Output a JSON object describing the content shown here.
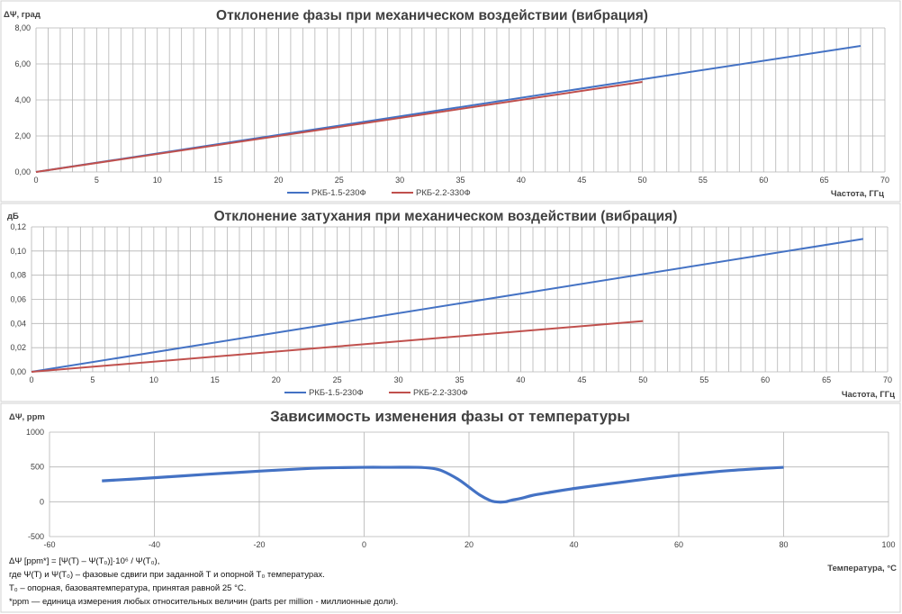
{
  "colors": {
    "blue": "#4472c4",
    "red": "#c0504d",
    "grid": "#b4b4b4",
    "border": "#d0d0d0"
  },
  "chart_data": [
    {
      "type": "line",
      "title": "Отклонение фазы при механическом воздействии (вибрация)",
      "ylabel": "ΔΨ, град",
      "xlabel": "Частота,  ГГц",
      "xlim": [
        0,
        70
      ],
      "ylim": [
        0,
        8
      ],
      "x_ticks": [
        "0",
        "5",
        "10",
        "15",
        "20",
        "25",
        "30",
        "35",
        "40",
        "45",
        "50",
        "55",
        "60",
        "65",
        "70"
      ],
      "y_ticks": [
        "0,00",
        "2,00",
        "4,00",
        "6,00",
        "8,00"
      ],
      "grid": "vertical every 1 GHz, horizontal every 2",
      "legend_position": "bottom",
      "series": [
        {
          "name": "РКБ-1.5-230Ф",
          "color": "#4472c4",
          "x": [
            0,
            68
          ],
          "y": [
            0,
            7.0
          ]
        },
        {
          "name": "РКБ-2.2-330Ф",
          "color": "#c0504d",
          "x": [
            0,
            50
          ],
          "y": [
            0,
            5.0
          ]
        }
      ]
    },
    {
      "type": "line",
      "title": "Отклонение затухания при механическом воздействии (вибрация)",
      "ylabel": "дБ",
      "xlabel": "Частота,  ГГц",
      "xlim": [
        0,
        70
      ],
      "ylim": [
        0,
        0.12
      ],
      "x_ticks": [
        "0",
        "5",
        "10",
        "15",
        "20",
        "25",
        "30",
        "35",
        "40",
        "45",
        "50",
        "55",
        "60",
        "65",
        "70"
      ],
      "y_ticks": [
        "0,00",
        "0,02",
        "0,04",
        "0,06",
        "0,08",
        "0,10",
        "0,12"
      ],
      "grid": "vertical every 1 GHz, horizontal every 0.02",
      "legend_position": "bottom",
      "series": [
        {
          "name": "РКБ-1.5-230Ф",
          "color": "#4472c4",
          "x": [
            0,
            68
          ],
          "y": [
            0,
            0.11
          ]
        },
        {
          "name": "РКБ-2.2-330Ф",
          "color": "#c0504d",
          "x": [
            0,
            50
          ],
          "y": [
            0,
            0.042
          ]
        }
      ]
    },
    {
      "type": "line",
      "title": "Зависимость изменения фазы от температуры",
      "ylabel": "ΔΨ, ppm",
      "xlabel": "Температура, °С",
      "xlim": [
        -60,
        100
      ],
      "ylim": [
        -500,
        1000
      ],
      "x_ticks": [
        "-60",
        "-40",
        "-20",
        "0",
        "20",
        "40",
        "60",
        "80",
        "100"
      ],
      "y_ticks": [
        "-500",
        "0",
        "500",
        "1000"
      ],
      "grid": "vertical every 20, horizontal every 500",
      "series": [
        {
          "color": "#4472c4",
          "x": [
            -50,
            -40,
            -30,
            -20,
            -10,
            -5,
            0,
            5,
            10,
            13,
            15,
            18,
            20,
            22,
            24,
            25,
            26,
            27,
            28,
            30,
            32,
            35,
            40,
            50,
            60,
            70,
            80
          ],
          "y": [
            300,
            345,
            395,
            440,
            480,
            490,
            495,
            495,
            495,
            480,
            440,
            320,
            210,
            100,
            20,
            0,
            -5,
            0,
            20,
            50,
            90,
            130,
            190,
            290,
            380,
            450,
            495
          ]
        }
      ]
    }
  ],
  "notes": {
    "formula": "ΔΨ [ppm*] = [Ψ(T) – Ψ(T₀)]·10⁶ / Ψ(T₀),",
    "line2": "где Ψ(T) и Ψ(T₀) – фазовые сдвиги при заданной Т и опорной T₀ температурах.",
    "line3": "T₀ – опорная, базоваятемпература, принятая равной 25 °С.",
    "line4": "*ppm — единица  измерения любых относительных величин (parts per million  - миллионные доли)."
  }
}
